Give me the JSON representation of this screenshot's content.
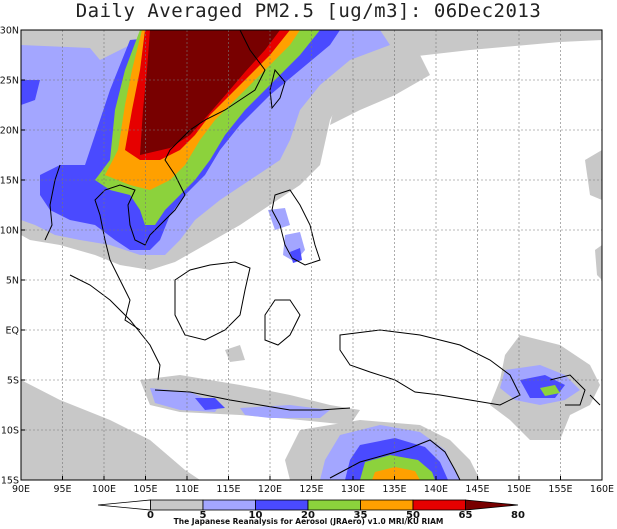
{
  "title": "Daily Averaged PM2.5 [ug/m3]: 06Dec2013",
  "credit": "The Japanese Reanalysis for Aerosol (JRAero) v1.0 MRI/KU RIAM",
  "lon_labels": [
    "90E",
    "95E",
    "100E",
    "105E",
    "110E",
    "115E",
    "120E",
    "125E",
    "130E",
    "135E",
    "140E",
    "145E",
    "150E",
    "155E",
    "160E"
  ],
  "lat_labels": [
    "30N",
    "25N",
    "20N",
    "15N",
    "10N",
    "5N",
    "EQ",
    "5S",
    "10S",
    "15S"
  ],
  "colorbar": {
    "labels": [
      "0",
      "5",
      "10",
      "20",
      "35",
      "50",
      "65",
      "80"
    ],
    "colors": [
      "#ffffff",
      "#c8c8c8",
      "#a3a6ff",
      "#4a4aff",
      "#8cd23c",
      "#ffa000",
      "#e60000",
      "#780000"
    ]
  }
}
